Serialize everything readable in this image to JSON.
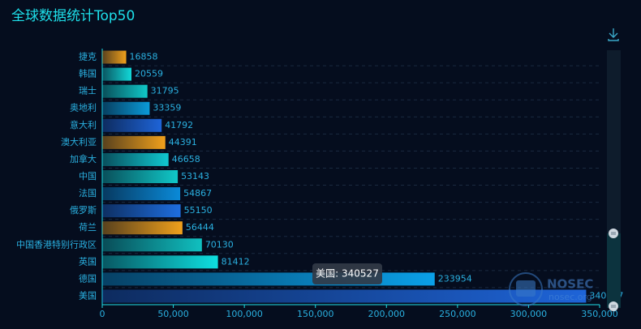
{
  "chart_data": {
    "type": "bar",
    "orientation": "horizontal",
    "title": "全球数据统计Top50",
    "categories": [
      "捷克",
      "韩国",
      "瑞士",
      "奥地利",
      "意大利",
      "澳大利亚",
      "加拿大",
      "中国",
      "法国",
      "俄罗斯",
      "荷兰",
      "中国香港特别行政区",
      "英国",
      "德国",
      "美国"
    ],
    "values": [
      16858,
      20559,
      31795,
      33359,
      41792,
      44391,
      46658,
      53143,
      54867,
      55150,
      56444,
      70130,
      81412,
      233954,
      340527
    ],
    "colors": [
      "#f0a01c",
      "#12d8d8",
      "#10c8c8",
      "#0a9ad8",
      "#1e64d8",
      "#f0a01c",
      "#10c8d0",
      "#10c8c8",
      "#0a8ad8",
      "#1e6ee0",
      "#f0a01c",
      "#10c0c0",
      "#0ee0e0",
      "#0aa0e8",
      "#1e64d8"
    ],
    "xlim": [
      0,
      350000
    ],
    "xticks": [
      0,
      {
        "value": 50000,
        "label": "50,000"
      },
      {
        "value": 100000,
        "label": "100,000"
      },
      {
        "value": 150000,
        "label": "150,000"
      },
      {
        "value": 200000,
        "label": "200,000"
      },
      {
        "value": 250000,
        "label": "250,000"
      },
      {
        "value": 300000,
        "label": "300,000"
      },
      {
        "value": 350000,
        "label": "350,000"
      }
    ],
    "tooltip": "美国: 340527",
    "watermark": {
      "name": "NOSEC",
      "site": "nosec.org"
    }
  }
}
